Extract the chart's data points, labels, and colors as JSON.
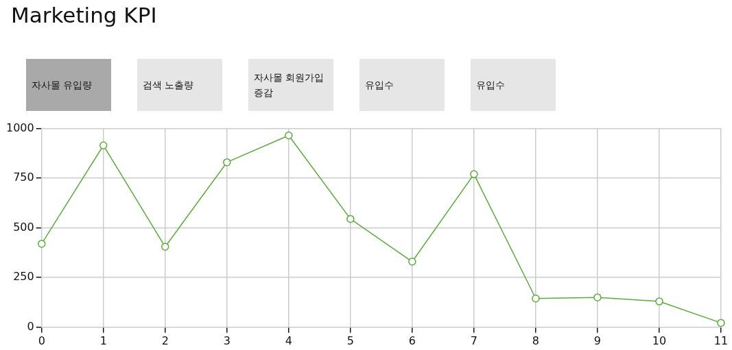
{
  "chart_data": {
    "type": "line",
    "title": "Marketing KPI",
    "annotations": [
      "자사몰 유입량",
      "검색 노출량",
      "자사몰 회원가입 증감",
      "유입수",
      "유입수"
    ],
    "x": [
      0,
      1,
      2,
      3,
      4,
      5,
      6,
      7,
      8,
      9,
      10,
      11
    ],
    "series": [
      {
        "color": "#5aab3c",
        "values": [
          420,
          915,
          405,
          830,
          965,
          545,
          330,
          770,
          145,
          150,
          130,
          22
        ]
      }
    ],
    "xlim": [
      0,
      11
    ],
    "xticks": [
      0,
      1,
      2,
      3,
      4,
      5,
      6,
      7,
      8,
      9,
      10,
      11
    ],
    "ylim": [
      0,
      1000
    ],
    "yticks": [
      0,
      250,
      500,
      750,
      1000
    ],
    "grid": true,
    "marker": "circle",
    "line_style": "solid",
    "legend": false
  }
}
